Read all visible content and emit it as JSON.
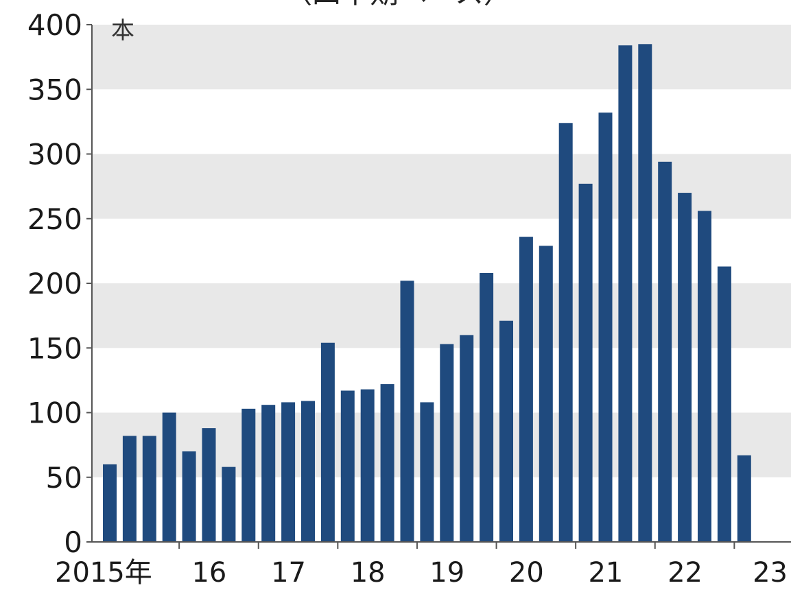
{
  "chart_data": {
    "type": "bar",
    "title": "（四半期ベース）",
    "ylabel": "本",
    "ylim": [
      0,
      400
    ],
    "yticks": [
      "0",
      "50",
      "100",
      "150",
      "200",
      "250",
      "300",
      "350",
      "400"
    ],
    "xtick_labels": [
      "2015年",
      "16",
      "17",
      "18",
      "19",
      "20",
      "21",
      "22",
      "23"
    ],
    "categories": [
      "2015Q1",
      "2015Q2",
      "2015Q3",
      "2015Q4",
      "2016Q1",
      "2016Q2",
      "2016Q3",
      "2016Q4",
      "2017Q1",
      "2017Q2",
      "2017Q3",
      "2017Q4",
      "2018Q1",
      "2018Q2",
      "2018Q3",
      "2018Q4",
      "2019Q1",
      "2019Q2",
      "2019Q3",
      "2019Q4",
      "2020Q1",
      "2020Q2",
      "2020Q3",
      "2020Q4",
      "2021Q1",
      "2021Q2",
      "2021Q3",
      "2021Q4",
      "2022Q1",
      "2022Q2",
      "2022Q3",
      "2022Q4",
      "2023Q1"
    ],
    "values": [
      60,
      82,
      82,
      100,
      70,
      88,
      58,
      103,
      106,
      108,
      109,
      154,
      117,
      118,
      122,
      202,
      108,
      153,
      160,
      208,
      171,
      236,
      229,
      324,
      277,
      332,
      384,
      385,
      294,
      270,
      256,
      213,
      67
    ],
    "grid": "alternating horizontal bands",
    "colors": {
      "bar": "#1f4a7e",
      "band": "#e8e8e8",
      "axis": "#555555"
    }
  }
}
